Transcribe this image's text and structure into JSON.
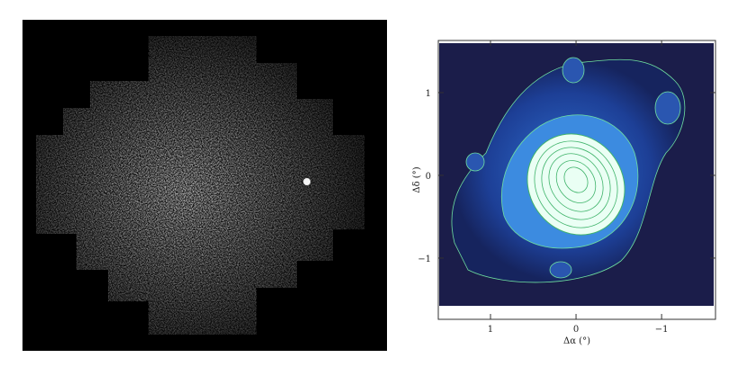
{
  "chart_data": {
    "type": "contour",
    "xlabel": "Δα (°)",
    "ylabel": "Δδ (°)",
    "xlim": [
      1.61,
      -1.63
    ],
    "ylim": [
      -1.74,
      1.63
    ],
    "xticks": [
      1,
      0,
      {
        "value": -1,
        "label": "−1"
      }
    ],
    "yticks": [
      1,
      0,
      {
        "value": -1,
        "label": "−1"
      }
    ]
  }
}
